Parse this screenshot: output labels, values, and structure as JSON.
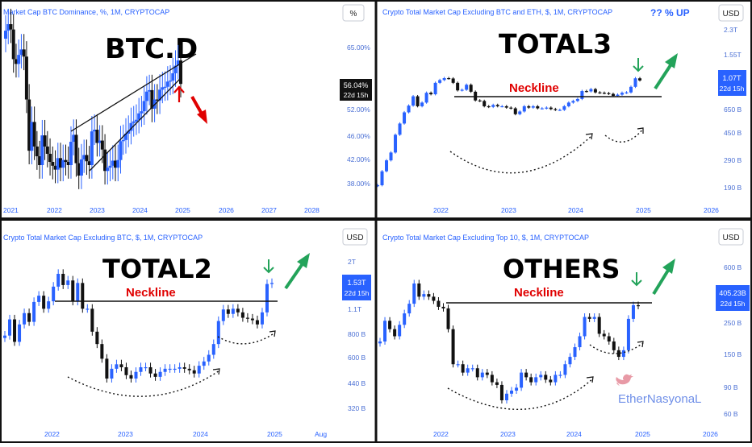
{
  "colors": {
    "bull": "#2962ff",
    "bear": "#111111",
    "frame": "#111111",
    "accent_red": "#e00000",
    "accent_green": "#23a35a",
    "header_blue": "#2962ff",
    "watermark": "#6f8fe8"
  },
  "header_note": "?? % UP",
  "watermark": {
    "text": "EtherNasyonaL",
    "icon": "twitter-bird-icon"
  },
  "charts": [
    {
      "key": "btcd",
      "title": "Market Cap BTC Dominance, %, 1M, CRYPTOCAP",
      "label": "BTC.D",
      "currency": "%",
      "price_badge": "56.04%",
      "countdown": "22d 15h",
      "y_ticks": [
        "65.00%",
        "52.00%",
        "46.00%",
        "42.00%",
        "38.00%"
      ],
      "x_ticks": [
        "2021",
        "2022",
        "2023",
        "2024",
        "2025",
        "2026",
        "2027",
        "2028"
      ],
      "annotation_icons": [
        "rising-wedge-pattern",
        "up-arrow-icon",
        "down-arrow-icon"
      ]
    },
    {
      "key": "total3",
      "title": "Crypto Total Market Cap Excluding BTC and ETH, $, 1M, CRYPTOCAP",
      "label": "TOTAL3",
      "neckline": "Neckline",
      "currency": "USD",
      "price_badge": "1.07T",
      "countdown": "22d 15h",
      "y_ticks": [
        "2.3T",
        "1.55T",
        "650 B",
        "450 B",
        "290 B",
        "190 B"
      ],
      "x_ticks": [
        "2022",
        "2023",
        "2024",
        "2025",
        "2026"
      ],
      "annotation_icons": [
        "cup-curve",
        "down-arrow-icon",
        "up-arrow-icon"
      ]
    },
    {
      "key": "total2",
      "title": "Crypto Total Market Cap Excluding BTC, $, 1M, CRYPTOCAP",
      "label": "TOTAL2",
      "neckline": "Neckline",
      "currency": "USD",
      "price_badge": "1.53T",
      "countdown": "22d 15h",
      "y_ticks": [
        "2T",
        "1.1T",
        "800 B",
        "600 B",
        "440 B",
        "320 B"
      ],
      "x_ticks": [
        "2022",
        "2023",
        "2024",
        "2025",
        "Aug"
      ],
      "annotation_icons": [
        "cup-curve",
        "down-arrow-icon",
        "up-arrow-icon"
      ]
    },
    {
      "key": "others",
      "title": "Crypto Total Market Cap Excluding Top 10, $, 1M, CRYPTOCAP",
      "label": "OTHERS",
      "neckline": "Neckline",
      "currency": "USD",
      "price_badge": "405.23B",
      "countdown": "22d 15h",
      "y_ticks": [
        "600 B",
        "250 B",
        "150 B",
        "90 B",
        "60 B"
      ],
      "x_ticks": [
        "2022",
        "2023",
        "2024",
        "2025",
        "2026"
      ],
      "annotation_icons": [
        "cup-curve",
        "down-arrow-icon",
        "up-arrow-icon"
      ]
    }
  ],
  "chart_data": [
    {
      "type": "candlestick",
      "title": "Market Cap BTC Dominance, %, 1M, CRYPTOCAP",
      "unit": "%",
      "scale": "log",
      "series": [
        {
          "values": [
            68.5,
            70.2,
            68.8,
            61.5,
            60.4,
            62.5,
            63.8,
            62.1,
            52.8,
            43.5,
            48.5,
            44.2,
            42.6,
            41.2,
            46.1,
            44.2,
            43.0,
            41.7,
            41.1,
            40.5,
            42.3,
            40.8,
            42.0,
            41.7,
            41.2,
            45.0,
            46.2,
            41.5,
            39.6,
            42.1,
            42.8,
            41.8,
            41.2,
            46.8,
            47.1,
            44.8,
            45.2,
            43.7,
            40.3,
            40.8,
            41.1,
            41.9,
            40.8,
            42.0,
            45.1,
            45.3,
            46.4,
            46.9,
            48.3,
            48.6,
            48.9,
            50.1,
            50.5,
            52.5,
            54.4,
            54.7,
            51.0,
            52.8,
            52.6,
            54.8,
            55.3,
            55.4,
            56.5,
            56.7,
            58.3,
            60.0,
            61.2,
            56.0
          ]
        }
      ]
    },
    {
      "type": "candlestick",
      "title": "Crypto Total Market Cap Excluding BTC and ETH, $, 1M, CRYPTOCAP",
      "unit": "USD",
      "scale": "log",
      "series": [
        {
          "values": [
            9,
            17,
            28,
            40,
            90,
            150,
            250,
            340,
            520,
            330,
            390,
            610,
            570,
            960,
            1090,
            1190,
            1170,
            960,
            680,
            700,
            880,
            640,
            430,
            420,
            330,
            320,
            350,
            330,
            330,
            310,
            300,
            230,
            260,
            330,
            310,
            330,
            300,
            300,
            310,
            290,
            280,
            280,
            330,
            390,
            420,
            460,
            660,
            650,
            720,
            620,
            610,
            600,
            580,
            530,
            560,
            610,
            620,
            800,
            1180,
            1070
          ]
        }
      ]
    },
    {
      "type": "candlestick",
      "title": "Crypto Total Market Cap Excluding BTC, $, 1M, CRYPTOCAP",
      "unit": "USD",
      "scale": "log",
      "series": [
        {
          "values": [
            780,
            960,
            720,
            900,
            1040,
            930,
            1200,
            1300,
            1100,
            1210,
            1460,
            1720,
            1490,
            1580,
            1210,
            1530,
            1100,
            1100,
            820,
            700,
            580,
            450,
            510,
            540,
            520,
            470,
            450,
            490,
            520,
            520,
            480,
            460,
            490,
            510,
            510,
            510,
            520,
            510,
            500,
            480,
            530,
            560,
            610,
            700,
            940,
            1090,
            1030,
            1100,
            1050,
            980,
            970,
            950,
            900,
            1050,
            1510,
            1530
          ]
        }
      ]
    },
    {
      "type": "candlestick",
      "title": "Crypto Total Market Cap Excluding Top 10, $, 1M, CRYPTOCAP",
      "unit": "USD",
      "scale": "log",
      "series": [
        {
          "values": [
            230,
            320,
            280,
            250,
            300,
            360,
            420,
            580,
            470,
            490,
            470,
            440,
            400,
            390,
            280,
            160,
            160,
            140,
            150,
            150,
            130,
            140,
            135,
            120,
            115,
            90,
            100,
            105,
            110,
            140,
            130,
            120,
            130,
            135,
            125,
            120,
            135,
            135,
            160,
            180,
            210,
            250,
            340,
            330,
            340,
            260,
            250,
            230,
            200,
            180,
            200,
            330,
            410,
            405
          ]
        }
      ]
    }
  ]
}
